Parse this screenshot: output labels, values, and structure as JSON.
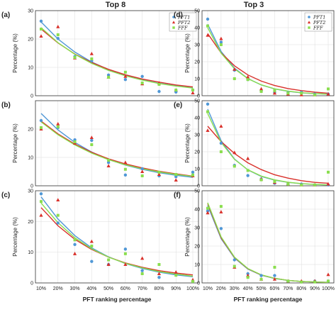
{
  "column_titles": [
    "Top 8",
    "Top 3"
  ],
  "chart_data": [
    {
      "type": "scatter",
      "panel": "(a)",
      "ylabel": "Percentage (%)",
      "categories": [
        "10%",
        "20%",
        "30%",
        "40%",
        "50%",
        "60%",
        "70%",
        "80%",
        "90%",
        "100%"
      ],
      "ylim": [
        0,
        30
      ],
      "yticks": [
        0,
        10,
        20,
        30
      ],
      "grid": true,
      "legend": {
        "entries": [
          "PFT1",
          "PFT2",
          "FFF"
        ],
        "location": "top-right"
      },
      "series": [
        {
          "name": "PFT1",
          "color": "#4f97d6",
          "marker": "circle",
          "values": [
            26.3,
            20.2,
            13.8,
            12.3,
            7.3,
            5.7,
            6.8,
            1.5,
            1.3,
            2.0
          ],
          "fit": [
            26.0,
            20.0,
            15.4,
            11.9,
            9.2,
            7.2,
            5.6,
            4.4,
            3.5,
            2.8
          ]
        },
        {
          "name": "PFT2",
          "color": "#d9302a",
          "marker": "triangle",
          "values": [
            21.0,
            24.3,
            13.3,
            14.8,
            6.5,
            6.8,
            4.2,
            4.5,
            2.0,
            1.0
          ],
          "fit": [
            23.5,
            18.6,
            14.7,
            11.7,
            9.3,
            7.4,
            5.9,
            4.8,
            3.8,
            3.1
          ]
        },
        {
          "name": "FFF",
          "color": "#8ade4e",
          "marker": "square",
          "values": [
            23.5,
            21.5,
            13.5,
            13.0,
            6.5,
            8.3,
            4.5,
            4.0,
            2.0,
            2.0
          ],
          "fit": [
            24.0,
            18.7,
            14.6,
            11.4,
            8.9,
            7.0,
            5.5,
            4.3,
            3.4,
            2.7
          ]
        }
      ]
    },
    {
      "type": "scatter",
      "panel": "(b)",
      "ylabel": "Percentage (%)",
      "categories": [
        "10%",
        "20%",
        "30%",
        "40%",
        "50%",
        "60%",
        "70%",
        "80%",
        "90%",
        "100%"
      ],
      "ylim": [
        0,
        30
      ],
      "yticks": [
        0,
        10,
        20
      ],
      "grid": true,
      "series": [
        {
          "name": "PFT1",
          "color": "#4f97d6",
          "marker": "circle",
          "values": [
            23.0,
            20.5,
            16.2,
            16.0,
            8.2,
            3.8,
            6.0,
            3.5,
            3.2,
            4.8
          ],
          "fit": [
            25.5,
            19.7,
            15.3,
            11.9,
            9.3,
            7.3,
            5.8,
            4.6,
            3.7,
            3.0
          ]
        },
        {
          "name": "PFT2",
          "color": "#d9302a",
          "marker": "triangle",
          "values": [
            20.0,
            21.8,
            15.0,
            17.0,
            7.0,
            8.2,
            5.0,
            4.0,
            2.0,
            3.5
          ],
          "fit": [
            22.8,
            18.3,
            14.7,
            11.8,
            9.5,
            7.7,
            6.3,
            5.1,
            4.2,
            3.4
          ]
        },
        {
          "name": "FFF",
          "color": "#8ade4e",
          "marker": "square",
          "values": [
            20.5,
            20.8,
            15.5,
            14.5,
            9.0,
            5.8,
            3.5,
            4.8,
            4.0,
            3.8
          ],
          "fit": [
            22.5,
            18.0,
            14.4,
            11.5,
            9.2,
            7.4,
            6.0,
            4.9,
            4.0,
            3.3
          ]
        }
      ]
    },
    {
      "type": "scatter",
      "panel": "(c)",
      "ylabel": "Percentage (%)",
      "xlabel": "PFT ranking percentage",
      "categories": [
        "10%",
        "20%",
        "30%",
        "40%",
        "50%",
        "60%",
        "70%",
        "80%",
        "90%",
        "100%"
      ],
      "ylim": [
        0,
        30
      ],
      "yticks": [
        0,
        10,
        20,
        30
      ],
      "grid": true,
      "series": [
        {
          "name": "PFT1",
          "color": "#4f97d6",
          "marker": "circle",
          "values": [
            29.0,
            19.5,
            12.5,
            7.0,
            6.0,
            11.0,
            4.0,
            1.8,
            3.0,
            0.5
          ],
          "fit": [
            28.0,
            20.8,
            15.4,
            11.4,
            8.5,
            6.3,
            4.7,
            3.5,
            2.6,
            2.0
          ]
        },
        {
          "name": "PFT2",
          "color": "#d9302a",
          "marker": "triangle",
          "values": [
            22.0,
            27.0,
            9.5,
            13.5,
            6.0,
            6.0,
            8.0,
            3.0,
            3.5,
            1.0
          ],
          "fit": [
            24.5,
            18.6,
            14.2,
            10.9,
            8.4,
            6.5,
            5.1,
            4.0,
            3.2,
            2.6
          ]
        },
        {
          "name": "FFF",
          "color": "#8ade4e",
          "marker": "square",
          "values": [
            26.5,
            22.0,
            14.0,
            12.0,
            7.5,
            9.5,
            3.0,
            6.0,
            2.5,
            0.5
          ],
          "fit": [
            26.0,
            19.6,
            14.7,
            11.1,
            8.4,
            6.4,
            4.9,
            3.7,
            2.9,
            2.2
          ]
        }
      ]
    },
    {
      "type": "scatter",
      "panel": "(d)",
      "ylabel": "Percentage (%)",
      "categories": [
        "10%",
        "20%",
        "30%",
        "40%",
        "50%",
        "60%",
        "70%",
        "80%",
        "90%",
        "100%"
      ],
      "ylim": [
        0,
        50
      ],
      "yticks": [
        0,
        10,
        20,
        30,
        40,
        50
      ],
      "grid": true,
      "legend": {
        "entries": [
          "PFT1",
          "PFT2",
          "FFF"
        ],
        "location": "top-right"
      },
      "series": [
        {
          "name": "PFT1",
          "color": "#4f97d6",
          "marker": "circle",
          "values": [
            45.0,
            31.5,
            15.0,
            9.5,
            2.8,
            2.0,
            1.8,
            2.0,
            1.0,
            1.0
          ],
          "fit": [
            42.0,
            26.0,
            16.2,
            10.1,
            6.3,
            4.0,
            2.6,
            1.7,
            1.2,
            0.9
          ]
        },
        {
          "name": "PFT2",
          "color": "#d9302a",
          "marker": "triangle",
          "values": [
            35.5,
            33.5,
            15.5,
            11.0,
            4.0,
            1.5,
            1.0,
            0.5,
            0.5,
            1.0
          ],
          "fit": [
            36.5,
            25.2,
            17.6,
            12.2,
            8.6,
            6.0,
            4.2,
            3.0,
            2.1,
            1.5
          ]
        },
        {
          "name": "FFF",
          "color": "#8ade4e",
          "marker": "square",
          "values": [
            41.0,
            30.0,
            10.0,
            9.5,
            2.5,
            3.0,
            1.5,
            1.5,
            0.5,
            4.0
          ],
          "fit": [
            40.0,
            25.0,
            15.8,
            10.0,
            6.4,
            4.1,
            2.7,
            1.8,
            1.2,
            0.9
          ]
        }
      ]
    },
    {
      "type": "scatter",
      "panel": "(e)",
      "ylabel": "Percentage (%)",
      "categories": [
        "10%",
        "20%",
        "30%",
        "40%",
        "50%",
        "60%",
        "70%",
        "80%",
        "90%",
        "100%"
      ],
      "ylim": [
        0,
        50
      ],
      "yticks": [
        0,
        10,
        20,
        30,
        40,
        50
      ],
      "grid": true,
      "series": [
        {
          "name": "PFT1",
          "color": "#4f97d6",
          "marker": "circle",
          "values": [
            48.0,
            25.0,
            12.0,
            6.0,
            4.0,
            1.5,
            1.0,
            1.0,
            0.5,
            0.5
          ],
          "fit": [
            45.0,
            26.5,
            15.7,
            9.3,
            5.5,
            3.3,
            2.0,
            1.2,
            0.8,
            0.5
          ]
        },
        {
          "name": "PFT2",
          "color": "#d9302a",
          "marker": "triangle",
          "values": [
            32.5,
            35.0,
            19.5,
            16.0,
            4.0,
            2.0,
            1.0,
            0.5,
            0.5,
            1.0
          ],
          "fit": [
            35.0,
            26.0,
            19.0,
            13.5,
            9.5,
            6.5,
            4.5,
            3.0,
            2.0,
            1.5
          ]
        },
        {
          "name": "FFF",
          "color": "#8ade4e",
          "marker": "square",
          "values": [
            43.5,
            20.0,
            11.5,
            9.0,
            3.5,
            2.5,
            1.0,
            0.5,
            0.5,
            8.0
          ],
          "fit": [
            42.5,
            25.5,
            15.5,
            9.4,
            5.7,
            3.5,
            2.1,
            1.3,
            0.8,
            0.5
          ]
        }
      ]
    },
    {
      "type": "scatter",
      "panel": "(f)",
      "ylabel": "Percentage (%)",
      "xlabel": "PFT ranking percentage",
      "categories": [
        "10%",
        "20%",
        "30%",
        "40%",
        "50%",
        "60%",
        "70%",
        "80%",
        "90%",
        "100%"
      ],
      "ylim": [
        0,
        50
      ],
      "yticks": [
        0,
        10,
        20,
        30,
        40,
        50
      ],
      "grid": true,
      "series": [
        {
          "name": "PFT1",
          "color": "#4f97d6",
          "marker": "circle",
          "values": [
            39.0,
            29.5,
            12.5,
            5.0,
            4.0,
            4.0,
            1.0,
            0.5,
            1.0,
            1.0
          ],
          "fit": [
            42.0,
            24.0,
            13.5,
            7.5,
            4.2,
            2.4,
            1.4,
            0.8,
            0.5,
            0.3
          ]
        },
        {
          "name": "PFT2",
          "color": "#d9302a",
          "marker": "triangle",
          "values": [
            38.0,
            38.5,
            8.5,
            4.0,
            2.0,
            2.0,
            1.0,
            1.0,
            1.0,
            4.5
          ],
          "fit": [
            43.0,
            24.5,
            13.8,
            7.7,
            4.3,
            2.5,
            1.4,
            0.8,
            0.5,
            0.3
          ]
        },
        {
          "name": "FFF",
          "color": "#8ade4e",
          "marker": "square",
          "values": [
            40.5,
            41.5,
            9.0,
            3.0,
            2.0,
            8.5,
            1.0,
            0.5,
            0.5,
            1.0
          ],
          "fit": [
            43.5,
            25.0,
            14.0,
            7.8,
            4.4,
            2.5,
            1.4,
            0.8,
            0.5,
            0.3
          ]
        }
      ]
    }
  ]
}
